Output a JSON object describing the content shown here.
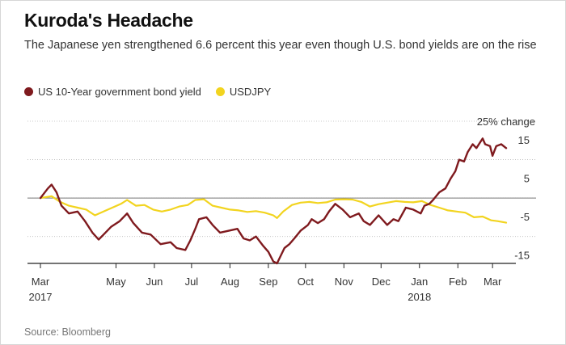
{
  "header": {
    "title": "Kuroda's Headache",
    "subtitle": "The Japanese yen strengthened 6.6 percent this year even though U.S. bond yields are on the rise"
  },
  "footer": {
    "source": "Source: Bloomberg"
  },
  "colors": {
    "bond": "#7f1a1e",
    "usdjpy": "#f2d41f",
    "zero_line": "#777777",
    "grid": "#bbbbbb",
    "axis": "#222222"
  },
  "chart_data": {
    "type": "line",
    "title": "Kuroda's Headache",
    "ylabel": "25% change",
    "xlabel": "",
    "ylim": [
      -17,
      20
    ],
    "xlim": [
      "2017-03-01",
      "2018-03-12"
    ],
    "yticks": [
      15,
      5,
      -5,
      -15
    ],
    "grid": true,
    "legend_position": "top-left",
    "x_ticks": [
      {
        "label": "Mar",
        "sub": "2017",
        "date": "2017-03-01"
      },
      {
        "label": "May",
        "sub": "",
        "date": "2017-05-01"
      },
      {
        "label": "Jun",
        "sub": "",
        "date": "2017-06-01"
      },
      {
        "label": "Jul",
        "sub": "",
        "date": "2017-07-01"
      },
      {
        "label": "Aug",
        "sub": "",
        "date": "2017-08-01"
      },
      {
        "label": "Sep",
        "sub": "",
        "date": "2017-09-01"
      },
      {
        "label": "Oct",
        "sub": "",
        "date": "2017-10-01"
      },
      {
        "label": "Nov",
        "sub": "",
        "date": "2017-11-01"
      },
      {
        "label": "Dec",
        "sub": "",
        "date": "2017-12-01"
      },
      {
        "label": "Jan",
        "sub": "2018",
        "date": "2018-01-01"
      },
      {
        "label": "Feb",
        "sub": "",
        "date": "2018-02-01"
      },
      {
        "label": "Mar",
        "sub": "",
        "date": "2018-03-01"
      }
    ],
    "series": [
      {
        "name": "US 10-Year government bond yield",
        "color": "#7f1a1e",
        "points": [
          [
            "2017-03-01",
            0
          ],
          [
            "2017-03-07",
            2.5
          ],
          [
            "2017-03-10",
            3.5
          ],
          [
            "2017-03-14",
            1.5
          ],
          [
            "2017-03-18",
            -2
          ],
          [
            "2017-03-24",
            -4
          ],
          [
            "2017-03-31",
            -3.5
          ],
          [
            "2017-04-06",
            -6
          ],
          [
            "2017-04-12",
            -9
          ],
          [
            "2017-04-17",
            -10.8
          ],
          [
            "2017-04-21",
            -9.5
          ],
          [
            "2017-04-27",
            -7.5
          ],
          [
            "2017-05-04",
            -6
          ],
          [
            "2017-05-10",
            -4
          ],
          [
            "2017-05-15",
            -6.5
          ],
          [
            "2017-05-22",
            -9
          ],
          [
            "2017-05-29",
            -9.5
          ],
          [
            "2017-06-06",
            -12
          ],
          [
            "2017-06-14",
            -11.5
          ],
          [
            "2017-06-19",
            -13
          ],
          [
            "2017-06-26",
            -13.5
          ],
          [
            "2017-06-30",
            -11
          ],
          [
            "2017-07-04",
            -8
          ],
          [
            "2017-07-07",
            -5.5
          ],
          [
            "2017-07-13",
            -5
          ],
          [
            "2017-07-18",
            -7
          ],
          [
            "2017-07-24",
            -9
          ],
          [
            "2017-07-31",
            -8.5
          ],
          [
            "2017-08-07",
            -8
          ],
          [
            "2017-08-12",
            -10.5
          ],
          [
            "2017-08-17",
            -11
          ],
          [
            "2017-08-22",
            -10
          ],
          [
            "2017-08-28",
            -12.5
          ],
          [
            "2017-09-01",
            -14
          ],
          [
            "2017-09-05",
            -16.5
          ],
          [
            "2017-09-08",
            -17
          ],
          [
            "2017-09-11",
            -15
          ],
          [
            "2017-09-14",
            -13
          ],
          [
            "2017-09-18",
            -12
          ],
          [
            "2017-09-22",
            -10.5
          ],
          [
            "2017-09-27",
            -8.5
          ],
          [
            "2017-10-03",
            -7
          ],
          [
            "2017-10-06",
            -5.5
          ],
          [
            "2017-10-11",
            -6.5
          ],
          [
            "2017-10-16",
            -5.5
          ],
          [
            "2017-10-20",
            -3.5
          ],
          [
            "2017-10-25",
            -1.5
          ],
          [
            "2017-10-31",
            -3
          ],
          [
            "2017-11-06",
            -5
          ],
          [
            "2017-11-13",
            -4
          ],
          [
            "2017-11-17",
            -6
          ],
          [
            "2017-11-22",
            -7
          ],
          [
            "2017-11-29",
            -4.5
          ],
          [
            "2017-12-06",
            -7
          ],
          [
            "2017-12-11",
            -5.5
          ],
          [
            "2017-12-15",
            -6
          ],
          [
            "2017-12-21",
            -2.5
          ],
          [
            "2017-12-27",
            -3
          ],
          [
            "2018-01-02",
            -4
          ],
          [
            "2018-01-05",
            -2
          ],
          [
            "2018-01-09",
            -1.5
          ],
          [
            "2018-01-12",
            -0.5
          ],
          [
            "2018-01-17",
            1.5
          ],
          [
            "2018-01-22",
            2.5
          ],
          [
            "2018-01-26",
            5
          ],
          [
            "2018-01-30",
            7
          ],
          [
            "2018-02-02",
            10
          ],
          [
            "2018-02-06",
            9.5
          ],
          [
            "2018-02-09",
            12
          ],
          [
            "2018-02-13",
            14
          ],
          [
            "2018-02-16",
            13
          ],
          [
            "2018-02-21",
            15.5
          ],
          [
            "2018-02-23",
            14
          ],
          [
            "2018-02-27",
            13.5
          ],
          [
            "2018-03-01",
            11
          ],
          [
            "2018-03-04",
            13.5
          ],
          [
            "2018-03-08",
            14
          ],
          [
            "2018-03-12",
            13
          ]
        ]
      },
      {
        "name": "USDJPY",
        "color": "#f2d41f",
        "points": [
          [
            "2017-03-01",
            0
          ],
          [
            "2017-03-10",
            0.5
          ],
          [
            "2017-03-17",
            -1
          ],
          [
            "2017-03-24",
            -2
          ],
          [
            "2017-03-31",
            -2.5
          ],
          [
            "2017-04-07",
            -3
          ],
          [
            "2017-04-14",
            -4.5
          ],
          [
            "2017-04-21",
            -3.5
          ],
          [
            "2017-04-28",
            -2.5
          ],
          [
            "2017-05-05",
            -1.5
          ],
          [
            "2017-05-10",
            -0.5
          ],
          [
            "2017-05-17",
            -2
          ],
          [
            "2017-05-24",
            -1.8
          ],
          [
            "2017-05-31",
            -3
          ],
          [
            "2017-06-07",
            -3.5
          ],
          [
            "2017-06-14",
            -3
          ],
          [
            "2017-06-21",
            -2.2
          ],
          [
            "2017-06-28",
            -1.8
          ],
          [
            "2017-07-04",
            -0.5
          ],
          [
            "2017-07-11",
            -0.3
          ],
          [
            "2017-07-18",
            -2
          ],
          [
            "2017-07-25",
            -2.5
          ],
          [
            "2017-08-01",
            -3
          ],
          [
            "2017-08-08",
            -3.2
          ],
          [
            "2017-08-15",
            -3.6
          ],
          [
            "2017-08-22",
            -3.4
          ],
          [
            "2017-08-29",
            -3.8
          ],
          [
            "2017-09-05",
            -4.5
          ],
          [
            "2017-09-08",
            -5.2
          ],
          [
            "2017-09-13",
            -3.5
          ],
          [
            "2017-09-20",
            -1.8
          ],
          [
            "2017-09-27",
            -1.2
          ],
          [
            "2017-10-04",
            -1
          ],
          [
            "2017-10-11",
            -1.3
          ],
          [
            "2017-10-18",
            -1.1
          ],
          [
            "2017-10-25",
            -0.4
          ],
          [
            "2017-11-01",
            -0.3
          ],
          [
            "2017-11-08",
            -0.4
          ],
          [
            "2017-11-15",
            -1
          ],
          [
            "2017-11-22",
            -2.2
          ],
          [
            "2017-11-29",
            -1.6
          ],
          [
            "2017-12-06",
            -1.2
          ],
          [
            "2017-12-13",
            -0.8
          ],
          [
            "2017-12-20",
            -1
          ],
          [
            "2017-12-27",
            -1.1
          ],
          [
            "2018-01-03",
            -0.8
          ],
          [
            "2018-01-10",
            -1.8
          ],
          [
            "2018-01-17",
            -2.5
          ],
          [
            "2018-01-24",
            -3.2
          ],
          [
            "2018-01-31",
            -3.5
          ],
          [
            "2018-02-07",
            -3.8
          ],
          [
            "2018-02-14",
            -5
          ],
          [
            "2018-02-21",
            -4.8
          ],
          [
            "2018-02-28",
            -5.8
          ],
          [
            "2018-03-05",
            -6
          ],
          [
            "2018-03-12",
            -6.4
          ]
        ]
      }
    ]
  }
}
